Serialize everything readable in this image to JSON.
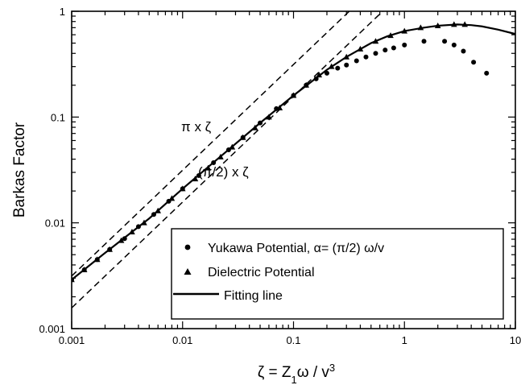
{
  "chart_data": {
    "type": "scatter",
    "xscale": "log",
    "yscale": "log",
    "xlim": [
      0.001,
      10
    ],
    "ylim": [
      0.001,
      1
    ],
    "grid": false,
    "xlabel": "ζ = Z₁ω / v³",
    "ylabel": "Barkas Factor",
    "xticks": [
      0.001,
      0.01,
      0.1,
      1,
      10
    ],
    "xtick_labels": [
      "0.001",
      "0.01",
      "0.1",
      "1",
      "10"
    ],
    "yticks": [
      0.001,
      0.01,
      0.1,
      1
    ],
    "ytick_labels": [
      "0.001",
      "0.01",
      "0.1",
      "1"
    ],
    "legend_position": "bottom-right",
    "series": [
      {
        "name": "Yukawa Potential, α= (π/2) ω/v",
        "marker": "circle",
        "points": [
          [
            0.001,
            0.0029
          ],
          [
            0.0013,
            0.0036
          ],
          [
            0.0017,
            0.0045
          ],
          [
            0.0022,
            0.0056
          ],
          [
            0.003,
            0.0071
          ],
          [
            0.004,
            0.0092
          ],
          [
            0.0055,
            0.012
          ],
          [
            0.0075,
            0.016
          ],
          [
            0.01,
            0.021
          ],
          [
            0.014,
            0.028
          ],
          [
            0.019,
            0.037
          ],
          [
            0.026,
            0.049
          ],
          [
            0.035,
            0.064
          ],
          [
            0.05,
            0.088
          ],
          [
            0.07,
            0.12
          ],
          [
            0.1,
            0.16
          ],
          [
            0.13,
            0.2
          ],
          [
            0.16,
            0.23
          ],
          [
            0.2,
            0.26
          ],
          [
            0.25,
            0.29
          ],
          [
            0.3,
            0.31
          ],
          [
            0.37,
            0.34
          ],
          [
            0.45,
            0.37
          ],
          [
            0.55,
            0.4
          ],
          [
            0.67,
            0.43
          ],
          [
            0.8,
            0.45
          ],
          [
            1.0,
            0.48
          ],
          [
            1.5,
            0.52
          ],
          [
            2.3,
            0.52
          ],
          [
            2.8,
            0.48
          ],
          [
            3.4,
            0.42
          ],
          [
            4.2,
            0.33
          ],
          [
            5.5,
            0.26
          ]
        ]
      },
      {
        "name": "Dielectric Potential",
        "marker": "triangle",
        "points": [
          [
            0.001,
            0.0029
          ],
          [
            0.0013,
            0.0036
          ],
          [
            0.0017,
            0.0045
          ],
          [
            0.0022,
            0.0056
          ],
          [
            0.0028,
            0.0068
          ],
          [
            0.0035,
            0.0082
          ],
          [
            0.0045,
            0.01
          ],
          [
            0.006,
            0.013
          ],
          [
            0.008,
            0.017
          ],
          [
            0.01,
            0.021
          ],
          [
            0.013,
            0.026
          ],
          [
            0.017,
            0.033
          ],
          [
            0.022,
            0.042
          ],
          [
            0.028,
            0.052
          ],
          [
            0.035,
            0.064
          ],
          [
            0.045,
            0.079
          ],
          [
            0.06,
            0.1
          ],
          [
            0.075,
            0.122
          ],
          [
            0.1,
            0.16
          ],
          [
            0.13,
            0.2
          ],
          [
            0.17,
            0.25
          ],
          [
            0.22,
            0.3
          ],
          [
            0.3,
            0.37
          ],
          [
            0.4,
            0.44
          ],
          [
            0.55,
            0.52
          ],
          [
            0.75,
            0.59
          ],
          [
            1.0,
            0.65
          ],
          [
            1.4,
            0.7
          ],
          [
            2.0,
            0.73
          ],
          [
            2.8,
            0.75
          ],
          [
            3.5,
            0.75
          ]
        ]
      },
      {
        "name": "Fitting line",
        "marker": "line",
        "points": [
          [
            0.001,
            0.0029
          ],
          [
            0.002,
            0.0052
          ],
          [
            0.005,
            0.011
          ],
          [
            0.01,
            0.021
          ],
          [
            0.02,
            0.039
          ],
          [
            0.05,
            0.088
          ],
          [
            0.1,
            0.16
          ],
          [
            0.2,
            0.28
          ],
          [
            0.3,
            0.37
          ],
          [
            0.5,
            0.5
          ],
          [
            0.7,
            0.58
          ],
          [
            1.0,
            0.65
          ],
          [
            1.5,
            0.7
          ],
          [
            2.0,
            0.73
          ],
          [
            3.0,
            0.75
          ],
          [
            4.0,
            0.74
          ],
          [
            5.0,
            0.72
          ],
          [
            7.0,
            0.67
          ],
          [
            10,
            0.61
          ]
        ]
      }
    ],
    "reference_lines": [
      {
        "label": "π x ζ",
        "slope": 3.14159
      },
      {
        "label": "(π/2) x ζ",
        "slope": 1.5708
      }
    ]
  }
}
